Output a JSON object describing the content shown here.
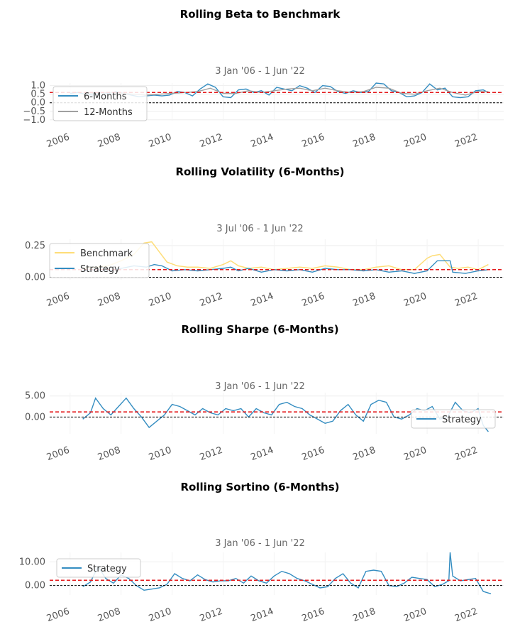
{
  "chart_data": [
    {
      "type": "line",
      "title": "Rolling Beta to Benchmark",
      "subtitle": "3 Jan '06 -  1 Jun '22",
      "x_ticks": [
        "2006",
        "2008",
        "2010",
        "2012",
        "2014",
        "2016",
        "2018",
        "2020",
        "2022"
      ],
      "xlim": [
        2005.2,
        2023.0
      ],
      "y_ticks": [
        "1.0",
        "0.5",
        "0.0",
        "−0.5",
        "−1.0"
      ],
      "y_tick_values": [
        1.0,
        0.5,
        0.0,
        -0.5,
        -1.0
      ],
      "ylim": [
        -1.05,
        1.15
      ],
      "hline_mean": 0.6,
      "hline_zero": 0.0,
      "legend": {
        "position": "upper-left",
        "entries": [
          "6-Months",
          "12-Months"
        ]
      },
      "series": [
        {
          "name": "6-Months",
          "color": "#348dc1",
          "x": [
            2006.0,
            2006.3,
            2006.6,
            2006.9,
            2007.2,
            2007.5,
            2007.8,
            2008.1,
            2008.4,
            2008.7,
            2009.0,
            2009.3,
            2009.6,
            2009.9,
            2010.2,
            2010.5,
            2010.8,
            2011.1,
            2011.4,
            2011.7,
            2012.0,
            2012.3,
            2012.6,
            2012.9,
            2013.2,
            2013.5,
            2013.8,
            2014.1,
            2014.4,
            2014.7,
            2015.0,
            2015.3,
            2015.6,
            2015.9,
            2016.2,
            2016.5,
            2016.8,
            2017.1,
            2017.4,
            2017.7,
            2018.0,
            2018.3,
            2018.6,
            2018.9,
            2019.2,
            2019.5,
            2019.8,
            2020.1,
            2020.4,
            2020.7,
            2021.0,
            2021.3,
            2021.6,
            2021.9,
            2022.2,
            2022.4
          ],
          "y": [
            0.55,
            0.6,
            0.5,
            0.45,
            0.6,
            0.55,
            0.65,
            0.55,
            0.45,
            0.35,
            0.4,
            0.45,
            0.4,
            0.45,
            0.65,
            0.6,
            0.4,
            0.8,
            1.1,
            0.9,
            0.35,
            0.3,
            0.75,
            0.8,
            0.6,
            0.7,
            0.45,
            0.9,
            0.8,
            0.7,
            1.0,
            0.85,
            0.6,
            1.0,
            0.95,
            0.65,
            0.55,
            0.7,
            0.6,
            0.65,
            1.15,
            1.1,
            0.7,
            0.6,
            0.35,
            0.4,
            0.6,
            1.1,
            0.75,
            0.85,
            0.35,
            0.3,
            0.35,
            0.7,
            0.75,
            0.6
          ]
        },
        {
          "name": "12-Months",
          "color": "#a0a0a0",
          "x": [
            2006.5,
            2007.0,
            2007.5,
            2008.0,
            2008.5,
            2009.0,
            2009.5,
            2010.0,
            2010.5,
            2011.0,
            2011.5,
            2012.0,
            2012.5,
            2013.0,
            2013.5,
            2014.0,
            2014.5,
            2015.0,
            2015.5,
            2016.0,
            2016.5,
            2017.0,
            2017.5,
            2018.0,
            2018.5,
            2019.0,
            2019.5,
            2020.0,
            2020.5,
            2021.0,
            2021.5,
            2022.0,
            2022.4
          ],
          "y": [
            0.5,
            0.55,
            0.6,
            0.55,
            0.5,
            0.45,
            0.5,
            0.55,
            0.6,
            0.65,
            0.85,
            0.55,
            0.55,
            0.7,
            0.6,
            0.7,
            0.8,
            0.85,
            0.7,
            0.85,
            0.7,
            0.6,
            0.65,
            0.9,
            0.85,
            0.55,
            0.5,
            0.7,
            0.85,
            0.6,
            0.45,
            0.65,
            0.65
          ]
        }
      ]
    },
    {
      "type": "line",
      "title": "Rolling Volatility (6-Months)",
      "subtitle": "3 Jul '06 -  1 Jun '22",
      "x_ticks": [
        "2006",
        "2008",
        "2010",
        "2012",
        "2014",
        "2016",
        "2018",
        "2020",
        "2022"
      ],
      "xlim": [
        2005.2,
        2023.0
      ],
      "y_ticks": [
        "0.25",
        "0.00"
      ],
      "y_tick_values": [
        0.25,
        0.0
      ],
      "ylim": [
        -0.02,
        0.3
      ],
      "hline_mean": 0.06,
      "hline_zero": 0.0,
      "legend": {
        "position": "upper-left",
        "entries": [
          "Benchmark",
          "Strategy"
        ]
      },
      "series": [
        {
          "name": "Benchmark",
          "color": "#fedd78",
          "x": [
            2006.5,
            2007.0,
            2007.5,
            2008.0,
            2008.5,
            2008.9,
            2009.2,
            2009.5,
            2009.8,
            2010.2,
            2010.6,
            2011.0,
            2011.5,
            2012.0,
            2012.3,
            2012.6,
            2013.0,
            2013.5,
            2014.0,
            2014.5,
            2015.0,
            2015.5,
            2016.0,
            2016.5,
            2017.0,
            2017.5,
            2018.0,
            2018.5,
            2019.0,
            2019.5,
            2020.0,
            2020.2,
            2020.5,
            2020.9,
            2021.2,
            2021.6,
            2022.0,
            2022.3,
            2022.4
          ],
          "y": [
            0.07,
            0.08,
            0.09,
            0.13,
            0.18,
            0.27,
            0.28,
            0.2,
            0.12,
            0.09,
            0.08,
            0.08,
            0.07,
            0.1,
            0.13,
            0.09,
            0.07,
            0.08,
            0.06,
            0.07,
            0.08,
            0.07,
            0.09,
            0.08,
            0.06,
            0.06,
            0.08,
            0.09,
            0.06,
            0.06,
            0.15,
            0.17,
            0.18,
            0.08,
            0.07,
            0.08,
            0.06,
            0.09,
            0.1
          ]
        },
        {
          "name": "Strategy",
          "color": "#348dc1",
          "x": [
            2006.5,
            2007.0,
            2007.5,
            2008.0,
            2008.5,
            2009.0,
            2009.3,
            2009.6,
            2010.0,
            2010.5,
            2011.0,
            2011.5,
            2012.0,
            2012.3,
            2012.6,
            2013.0,
            2013.5,
            2014.0,
            2014.5,
            2015.0,
            2015.5,
            2016.0,
            2016.5,
            2017.0,
            2017.5,
            2018.0,
            2018.5,
            2019.0,
            2019.5,
            2020.0,
            2020.4,
            2020.5,
            2020.9,
            2021.0,
            2021.5,
            2022.0,
            2022.4
          ],
          "y": [
            0.05,
            0.06,
            0.05,
            0.07,
            0.09,
            0.08,
            0.1,
            0.09,
            0.05,
            0.06,
            0.05,
            0.06,
            0.07,
            0.08,
            0.05,
            0.07,
            0.04,
            0.06,
            0.05,
            0.06,
            0.04,
            0.07,
            0.06,
            0.06,
            0.05,
            0.06,
            0.04,
            0.05,
            0.03,
            0.05,
            0.13,
            0.13,
            0.13,
            0.04,
            0.03,
            0.05,
            0.06
          ]
        }
      ]
    },
    {
      "type": "line",
      "title": "Rolling Sharpe (6-Months)",
      "subtitle": "3 Jan '06 -  1 Jun '22",
      "x_ticks": [
        "2006",
        "2008",
        "2010",
        "2012",
        "2014",
        "2016",
        "2018",
        "2020",
        "2022"
      ],
      "xlim": [
        2005.2,
        2023.0
      ],
      "y_ticks": [
        "5.00",
        "0.00"
      ],
      "y_tick_values": [
        5.0,
        0.0
      ],
      "ylim": [
        -4.0,
        5.8
      ],
      "hline_mean": 1.2,
      "hline_zero": 0.0,
      "legend": {
        "position": "lower-right",
        "entries": [
          "Strategy"
        ]
      },
      "series": [
        {
          "name": "Strategy",
          "color": "#348dc1",
          "x": [
            2006.5,
            2006.8,
            2007.0,
            2007.3,
            2007.6,
            2007.9,
            2008.2,
            2008.5,
            2008.8,
            2009.1,
            2009.4,
            2009.7,
            2010.0,
            2010.3,
            2010.6,
            2010.9,
            2011.2,
            2011.5,
            2011.8,
            2012.1,
            2012.4,
            2012.7,
            2013.0,
            2013.3,
            2013.6,
            2013.9,
            2014.2,
            2014.5,
            2014.8,
            2015.1,
            2015.4,
            2015.7,
            2016.0,
            2016.3,
            2016.6,
            2016.9,
            2017.2,
            2017.5,
            2017.8,
            2018.1,
            2018.4,
            2018.7,
            2019.0,
            2019.3,
            2019.6,
            2019.9,
            2020.2,
            2020.5,
            2020.8,
            2021.1,
            2021.4,
            2021.7,
            2022.0,
            2022.2,
            2022.4
          ],
          "y": [
            -0.5,
            1.0,
            4.5,
            2.0,
            0.5,
            2.5,
            4.5,
            2.0,
            0.0,
            -2.5,
            -1.0,
            0.5,
            3.0,
            2.5,
            1.5,
            0.5,
            2.0,
            1.0,
            0.5,
            2.0,
            1.5,
            2.0,
            0.0,
            2.0,
            1.0,
            0.5,
            3.0,
            3.5,
            2.5,
            2.0,
            0.5,
            -0.5,
            -1.5,
            -1.0,
            1.5,
            3.0,
            0.5,
            -1.0,
            3.0,
            4.0,
            3.5,
            0.0,
            -0.5,
            0.5,
            2.0,
            1.5,
            2.5,
            -0.5,
            0.0,
            3.5,
            1.5,
            1.0,
            2.0,
            -2.0,
            -3.5
          ]
        }
      ]
    },
    {
      "type": "line",
      "title": "Rolling Sortino (6-Months)",
      "subtitle": "3 Jan '06 -  1 Jun '22",
      "x_ticks": [
        "2006",
        "2008",
        "2010",
        "2012",
        "2014",
        "2016",
        "2018",
        "2020",
        "2022"
      ],
      "xlim": [
        2005.2,
        2023.0
      ],
      "y_ticks": [
        "10.00",
        "0.00"
      ],
      "y_tick_values": [
        10.0,
        0.0
      ],
      "ylim": [
        -4.0,
        14.0
      ],
      "hline_mean": 2.2,
      "hline_zero": 0.0,
      "legend": {
        "position": "upper-left",
        "entries": [
          "Strategy"
        ]
      },
      "series": [
        {
          "name": "Strategy",
          "color": "#348dc1",
          "x": [
            2006.5,
            2006.8,
            2007.1,
            2007.4,
            2007.7,
            2008.0,
            2008.3,
            2008.6,
            2008.9,
            2009.2,
            2009.5,
            2009.8,
            2010.1,
            2010.4,
            2010.7,
            2011.0,
            2011.3,
            2011.6,
            2011.9,
            2012.2,
            2012.5,
            2012.8,
            2013.1,
            2013.4,
            2013.7,
            2014.0,
            2014.3,
            2014.6,
            2014.9,
            2015.2,
            2015.5,
            2015.8,
            2016.1,
            2016.4,
            2016.7,
            2017.0,
            2017.3,
            2017.6,
            2017.9,
            2018.2,
            2018.5,
            2018.8,
            2019.1,
            2019.4,
            2019.7,
            2020.0,
            2020.3,
            2020.6,
            2020.85,
            2020.9,
            2021.0,
            2021.3,
            2021.6,
            2021.9,
            2022.2,
            2022.5
          ],
          "y": [
            -0.5,
            1.5,
            8.0,
            3.0,
            1.0,
            4.5,
            3.0,
            0.0,
            -2.0,
            -1.5,
            -1.0,
            0.5,
            5.0,
            3.0,
            2.0,
            4.5,
            2.5,
            1.5,
            2.0,
            2.0,
            3.0,
            1.0,
            4.0,
            2.0,
            1.0,
            4.0,
            6.0,
            5.0,
            3.0,
            2.0,
            0.5,
            -1.0,
            -0.5,
            3.0,
            5.0,
            1.0,
            -1.0,
            6.0,
            6.5,
            6.0,
            0.0,
            -0.5,
            1.0,
            3.5,
            3.0,
            2.5,
            -0.5,
            0.5,
            2.0,
            14.0,
            4.0,
            2.0,
            2.5,
            3.0,
            -2.5,
            -3.5
          ]
        }
      ]
    }
  ]
}
